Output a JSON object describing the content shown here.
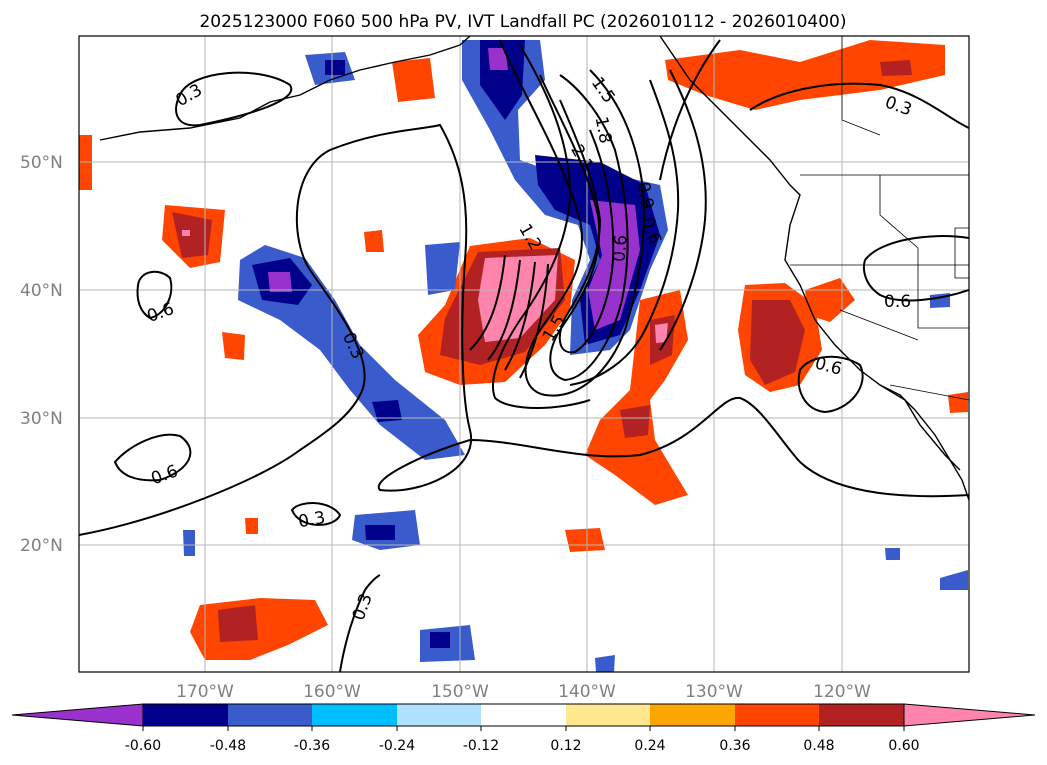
{
  "title": "2025123000 F060 500 hPa PV, IVT Landfall PC (2026010112 - 2026010400)",
  "map": {
    "lat_labels": [
      "50°N",
      "40°N",
      "30°N",
      "20°N"
    ],
    "lon_labels": [
      "170°W",
      "160°W",
      "150°W",
      "140°W",
      "130°W",
      "120°W"
    ],
    "contour_labels": [
      "0.3",
      "0.3",
      "0.6",
      "0.3",
      "0.6",
      "0.3",
      "0.3",
      "0.6",
      "1.5",
      "1.8",
      "2.1",
      "1.2",
      "0.9",
      "0.6",
      "1.5",
      "0.6",
      "0.6"
    ]
  },
  "colorbar": {
    "colors": [
      "#9932CC",
      "#00008B",
      "#3A5BCC",
      "#00BFFF",
      "#B0E2FF",
      "#FFFFFF",
      "#FFE88F",
      "#FFA500",
      "#FF4500",
      "#B22222",
      "#FF85AF"
    ],
    "ticks": [
      "-0.60",
      "-0.48",
      "-0.36",
      "-0.24",
      "-0.12",
      "0.12",
      "0.24",
      "0.36",
      "0.48",
      "0.60"
    ]
  }
}
